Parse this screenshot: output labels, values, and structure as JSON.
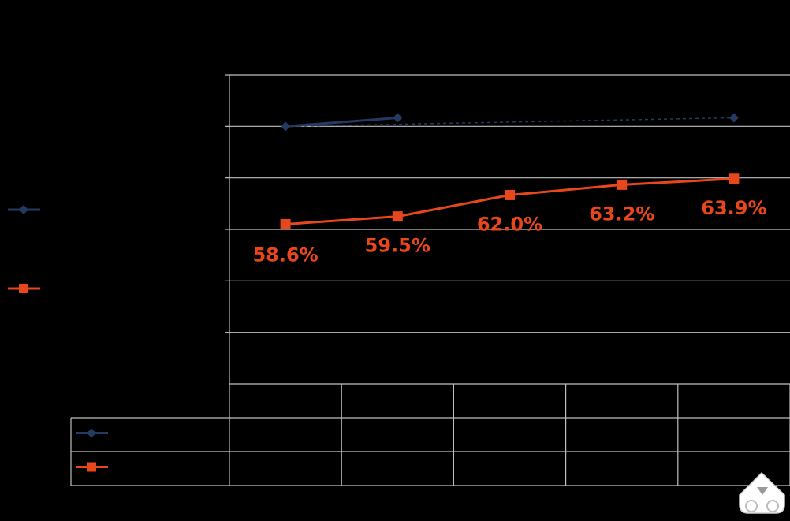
{
  "colors": {
    "background": "#000000",
    "grid": "#bfbfbf",
    "series_navy": "#243a63",
    "series_orange": "#e8471b",
    "icon_fill": "#ffffff"
  },
  "chart_data": {
    "type": "line",
    "categories": [
      "",
      "",
      "",
      "",
      ""
    ],
    "title": "",
    "xlabel": "",
    "ylabel": "",
    "grid": true,
    "legend_position": "left",
    "series": [
      {
        "color": "#243a63",
        "marker": "diamond",
        "values": [
          70.0,
          71.0,
          null,
          null,
          71.0
        ],
        "labels": [
          "",
          "",
          "",
          "",
          ""
        ]
      },
      {
        "color": "#e8471b",
        "marker": "square",
        "values": [
          58.6,
          59.5,
          62.0,
          63.2,
          63.9
        ],
        "labels": [
          "58.6%",
          "59.5%",
          "62.0%",
          "63.2%",
          "63.9%"
        ]
      }
    ],
    "trendline": {
      "series": 0,
      "style": "dashed",
      "values": [
        70.0,
        71.0
      ]
    },
    "data_table": true
  }
}
